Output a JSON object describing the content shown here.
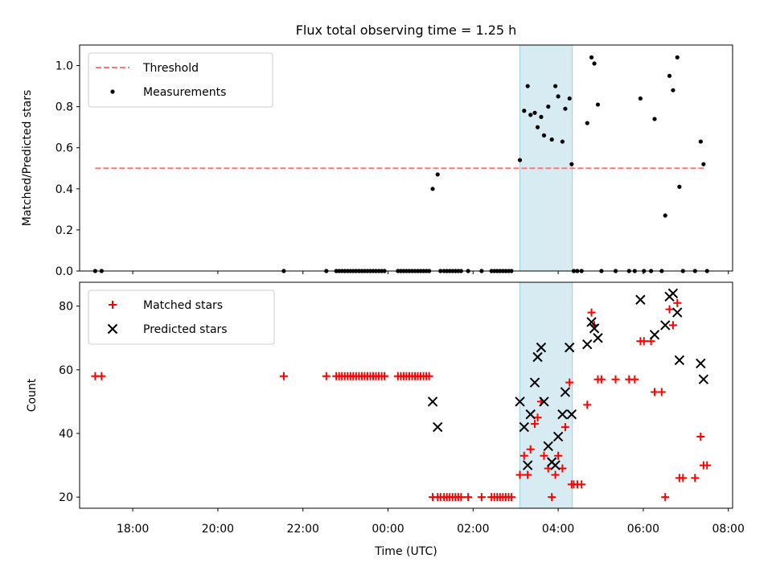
{
  "title": "Flux total observing time = 1.25 h",
  "chart_data": [
    {
      "type": "scatter",
      "ylabel": "Matched/Predicted stars",
      "xlabel": "",
      "xlim": [
        "16:45",
        "08:06"
      ],
      "ylim": [
        0,
        1.1
      ],
      "yticks": [
        0.0,
        0.2,
        0.4,
        0.6,
        0.8,
        1.0
      ],
      "ytick_labels": [
        "0.0",
        "0.2",
        "0.4",
        "0.6",
        "0.8",
        "1.0"
      ],
      "grid": false,
      "legend_position": "upper-left",
      "highlight_span": [
        "03:06",
        "04:20"
      ],
      "threshold": {
        "name": "Threshold",
        "y": 0.5,
        "x_range": [
          "17:07",
          "07:28"
        ],
        "color": "#ff7777",
        "style": "dashed"
      },
      "series": [
        {
          "name": "Measurements",
          "color": "#000000",
          "points": [
            [
              "17:07",
              0
            ],
            [
              "17:16",
              0
            ],
            [
              "21:33",
              0
            ],
            [
              "22:33",
              0
            ],
            [
              "22:47",
              0
            ],
            [
              "22:51",
              0
            ],
            [
              "22:55",
              0
            ],
            [
              "22:59",
              0
            ],
            [
              "23:03",
              0
            ],
            [
              "23:07",
              0
            ],
            [
              "23:11",
              0
            ],
            [
              "23:15",
              0
            ],
            [
              "23:19",
              0
            ],
            [
              "23:23",
              0
            ],
            [
              "23:27",
              0
            ],
            [
              "23:31",
              0
            ],
            [
              "23:35",
              0
            ],
            [
              "23:39",
              0
            ],
            [
              "23:43",
              0
            ],
            [
              "23:47",
              0
            ],
            [
              "23:51",
              0
            ],
            [
              "23:55",
              0
            ],
            [
              "00:14",
              0
            ],
            [
              "00:18",
              0
            ],
            [
              "00:22",
              0
            ],
            [
              "00:26",
              0
            ],
            [
              "00:30",
              0
            ],
            [
              "00:34",
              0
            ],
            [
              "00:38",
              0
            ],
            [
              "00:42",
              0
            ],
            [
              "00:46",
              0
            ],
            [
              "00:50",
              0
            ],
            [
              "00:54",
              0
            ],
            [
              "00:58",
              0
            ],
            [
              "01:03",
              0.4
            ],
            [
              "01:10",
              0.47
            ],
            [
              "01:14",
              0
            ],
            [
              "01:19",
              0
            ],
            [
              "01:23",
              0
            ],
            [
              "01:27",
              0
            ],
            [
              "01:31",
              0
            ],
            [
              "01:35",
              0
            ],
            [
              "01:39",
              0
            ],
            [
              "01:43",
              0
            ],
            [
              "01:53",
              0
            ],
            [
              "02:12",
              0
            ],
            [
              "02:26",
              0
            ],
            [
              "02:30",
              0
            ],
            [
              "02:34",
              0
            ],
            [
              "02:38",
              0
            ],
            [
              "02:42",
              0
            ],
            [
              "02:46",
              0
            ],
            [
              "02:50",
              0
            ],
            [
              "02:54",
              0
            ],
            [
              "03:06",
              0.54
            ],
            [
              "03:12",
              0.78
            ],
            [
              "03:17",
              0.9
            ],
            [
              "03:21",
              0.76
            ],
            [
              "03:27",
              0.77
            ],
            [
              "03:31",
              0.7
            ],
            [
              "03:36",
              0.75
            ],
            [
              "03:40",
              0.66
            ],
            [
              "03:46",
              0.8
            ],
            [
              "03:51",
              0.64
            ],
            [
              "03:56",
              0.9
            ],
            [
              "04:00",
              0.85
            ],
            [
              "04:06",
              0.63
            ],
            [
              "04:10",
              0.79
            ],
            [
              "04:16",
              0.84
            ],
            [
              "04:19",
              0.52
            ],
            [
              "04:22",
              0
            ],
            [
              "04:27",
              0
            ],
            [
              "04:33",
              0
            ],
            [
              "04:41",
              0.72
            ],
            [
              "04:47",
              1.04
            ],
            [
              "04:51",
              1.01
            ],
            [
              "04:56",
              0.81
            ],
            [
              "05:01",
              0
            ],
            [
              "05:21",
              0
            ],
            [
              "05:40",
              0
            ],
            [
              "05:48",
              0
            ],
            [
              "05:56",
              0.84
            ],
            [
              "06:01",
              0
            ],
            [
              "06:11",
              0
            ],
            [
              "06:16",
              0.74
            ],
            [
              "06:26",
              0
            ],
            [
              "06:31",
              0.27
            ],
            [
              "06:37",
              0.95
            ],
            [
              "06:42",
              0.88
            ],
            [
              "06:48",
              1.04
            ],
            [
              "06:51",
              0.41
            ],
            [
              "06:56",
              0
            ],
            [
              "07:13",
              0
            ],
            [
              "07:21",
              0.63
            ],
            [
              "07:25",
              0.52
            ],
            [
              "07:30",
              0
            ]
          ]
        }
      ]
    },
    {
      "type": "scatter",
      "xlabel": "Time (UTC)",
      "ylabel": "Count",
      "xlim": [
        "16:45",
        "08:06"
      ],
      "ylim": [
        16.5,
        87.5
      ],
      "xticks": [
        "18:00",
        "20:00",
        "22:00",
        "00:00",
        "02:00",
        "04:00",
        "06:00",
        "08:00"
      ],
      "yticks": [
        20,
        40,
        60,
        80
      ],
      "ytick_labels": [
        "20",
        "40",
        "60",
        "80"
      ],
      "grid": false,
      "legend_position": "upper-left",
      "highlight_span": [
        "03:06",
        "04:20"
      ],
      "series": [
        {
          "name": "Matched stars",
          "marker": "+",
          "color": "#ff0000",
          "points": [
            [
              "17:07",
              58
            ],
            [
              "17:16",
              58
            ],
            [
              "21:33",
              58
            ],
            [
              "22:33",
              58
            ],
            [
              "22:47",
              58
            ],
            [
              "22:51",
              58
            ],
            [
              "22:55",
              58
            ],
            [
              "22:59",
              58
            ],
            [
              "23:03",
              58
            ],
            [
              "23:07",
              58
            ],
            [
              "23:11",
              58
            ],
            [
              "23:15",
              58
            ],
            [
              "23:19",
              58
            ],
            [
              "23:23",
              58
            ],
            [
              "23:27",
              58
            ],
            [
              "23:31",
              58
            ],
            [
              "23:35",
              58
            ],
            [
              "23:39",
              58
            ],
            [
              "23:43",
              58
            ],
            [
              "23:47",
              58
            ],
            [
              "23:51",
              58
            ],
            [
              "23:55",
              58
            ],
            [
              "00:14",
              58
            ],
            [
              "00:18",
              58
            ],
            [
              "00:22",
              58
            ],
            [
              "00:26",
              58
            ],
            [
              "00:30",
              58
            ],
            [
              "00:34",
              58
            ],
            [
              "00:38",
              58
            ],
            [
              "00:42",
              58
            ],
            [
              "00:46",
              58
            ],
            [
              "00:50",
              58
            ],
            [
              "00:54",
              58
            ],
            [
              "00:58",
              58
            ],
            [
              "01:03",
              20
            ],
            [
              "01:10",
              20
            ],
            [
              "01:14",
              20
            ],
            [
              "01:19",
              20
            ],
            [
              "01:23",
              20
            ],
            [
              "01:27",
              20
            ],
            [
              "01:31",
              20
            ],
            [
              "01:35",
              20
            ],
            [
              "01:39",
              20
            ],
            [
              "01:43",
              20
            ],
            [
              "01:53",
              20
            ],
            [
              "02:12",
              20
            ],
            [
              "02:26",
              20
            ],
            [
              "02:30",
              20
            ],
            [
              "02:34",
              20
            ],
            [
              "02:38",
              20
            ],
            [
              "02:42",
              20
            ],
            [
              "02:46",
              20
            ],
            [
              "02:50",
              20
            ],
            [
              "02:54",
              20
            ],
            [
              "03:06",
              27
            ],
            [
              "03:12",
              33
            ],
            [
              "03:17",
              27
            ],
            [
              "03:21",
              35
            ],
            [
              "03:27",
              43
            ],
            [
              "03:31",
              45
            ],
            [
              "03:36",
              50
            ],
            [
              "03:40",
              33
            ],
            [
              "03:46",
              29
            ],
            [
              "03:51",
              20
            ],
            [
              "03:56",
              27
            ],
            [
              "04:00",
              33
            ],
            [
              "04:06",
              29
            ],
            [
              "04:10",
              42
            ],
            [
              "04:16",
              56
            ],
            [
              "04:19",
              24
            ],
            [
              "04:22",
              24
            ],
            [
              "04:27",
              24
            ],
            [
              "04:33",
              24
            ],
            [
              "04:41",
              49
            ],
            [
              "04:47",
              78
            ],
            [
              "04:51",
              74
            ],
            [
              "04:56",
              57
            ],
            [
              "05:01",
              57
            ],
            [
              "05:21",
              57
            ],
            [
              "05:40",
              57
            ],
            [
              "05:48",
              57
            ],
            [
              "05:56",
              69
            ],
            [
              "06:01",
              69
            ],
            [
              "06:11",
              69
            ],
            [
              "06:16",
              53
            ],
            [
              "06:26",
              53
            ],
            [
              "06:31",
              20
            ],
            [
              "06:37",
              79
            ],
            [
              "06:42",
              74
            ],
            [
              "06:48",
              81
            ],
            [
              "06:51",
              26
            ],
            [
              "06:56",
              26
            ],
            [
              "07:13",
              26
            ],
            [
              "07:21",
              39
            ],
            [
              "07:25",
              30
            ],
            [
              "07:30",
              30
            ]
          ]
        },
        {
          "name": "Predicted stars",
          "marker": "x",
          "color": "#000000",
          "points": [
            [
              "01:03",
              50
            ],
            [
              "01:10",
              42
            ],
            [
              "03:06",
              50
            ],
            [
              "03:12",
              42
            ],
            [
              "03:17",
              30
            ],
            [
              "03:21",
              46
            ],
            [
              "03:27",
              56
            ],
            [
              "03:31",
              64
            ],
            [
              "03:36",
              67
            ],
            [
              "03:40",
              50
            ],
            [
              "03:46",
              36
            ],
            [
              "03:51",
              31
            ],
            [
              "03:56",
              30
            ],
            [
              "04:00",
              39
            ],
            [
              "04:06",
              46
            ],
            [
              "04:10",
              53
            ],
            [
              "04:16",
              67
            ],
            [
              "04:19",
              46
            ],
            [
              "04:41",
              68
            ],
            [
              "04:47",
              75
            ],
            [
              "04:51",
              73
            ],
            [
              "04:56",
              70
            ],
            [
              "05:56",
              82
            ],
            [
              "06:16",
              71
            ],
            [
              "06:31",
              74
            ],
            [
              "06:37",
              83
            ],
            [
              "06:42",
              84
            ],
            [
              "06:48",
              78
            ],
            [
              "06:51",
              63
            ],
            [
              "07:21",
              62
            ],
            [
              "07:25",
              57
            ]
          ]
        }
      ]
    }
  ]
}
